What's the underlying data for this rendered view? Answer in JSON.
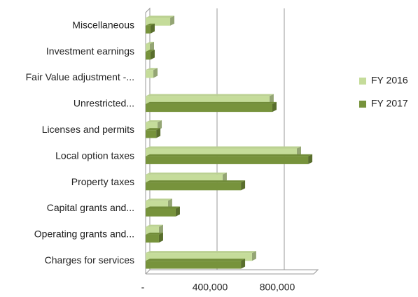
{
  "chart_data": {
    "type": "bar",
    "orientation": "horizontal",
    "categories": [
      "Miscellaneous",
      "Investment earnings",
      "Fair Value adjustment -...",
      "Unrestricted...",
      "Licenses and permits",
      "Local option taxes",
      "Property taxes",
      "Capital grants and...",
      "Operating grants and...",
      "Charges for services"
    ],
    "series": [
      {
        "name": "FY 2016",
        "color": "#c5dc9a",
        "values": [
          146000,
          25000,
          46000,
          737000,
          71000,
          900000,
          458000,
          133000,
          79000,
          633000
        ]
      },
      {
        "name": "FY 2017",
        "color": "#77933c",
        "values": [
          29000,
          29000,
          0,
          754000,
          63000,
          967000,
          567000,
          179000,
          79000,
          567000
        ]
      }
    ],
    "xlim": [
      0,
      1000000
    ],
    "xticks": [
      {
        "value": 0,
        "label": "-"
      },
      {
        "value": 400000,
        "label": "400,000"
      },
      {
        "value": 800000,
        "label": "800,000"
      }
    ],
    "grid": true,
    "legend": "right"
  }
}
